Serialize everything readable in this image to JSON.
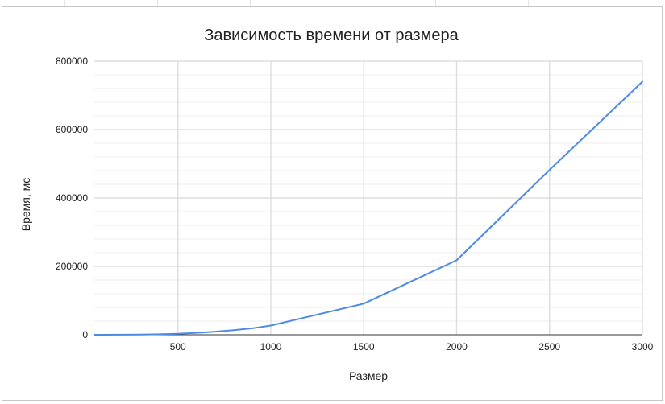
{
  "chart_data": {
    "type": "line",
    "title": "Зависимость времени от размера",
    "xlabel": "Размер",
    "ylabel": "Время, мс",
    "xlim": [
      50,
      3000
    ],
    "ylim": [
      0,
      800000
    ],
    "x_ticks": [
      500,
      1000,
      1500,
      2000,
      2500,
      3000
    ],
    "y_ticks": [
      0,
      200000,
      400000,
      600000,
      800000
    ],
    "y_minor_gridlines": true,
    "grid": true,
    "series": [
      {
        "x": [
          50,
          100,
          200,
          300,
          400,
          500,
          600,
          700,
          800,
          900,
          1000,
          1500,
          2000,
          2500,
          3000
        ],
        "y": [
          0,
          30,
          250,
          700,
          1500,
          3000,
          5500,
          9000,
          13500,
          19000,
          27000,
          91000,
          218000,
          482000,
          740000
        ],
        "color": "#4d8ae8"
      }
    ]
  }
}
